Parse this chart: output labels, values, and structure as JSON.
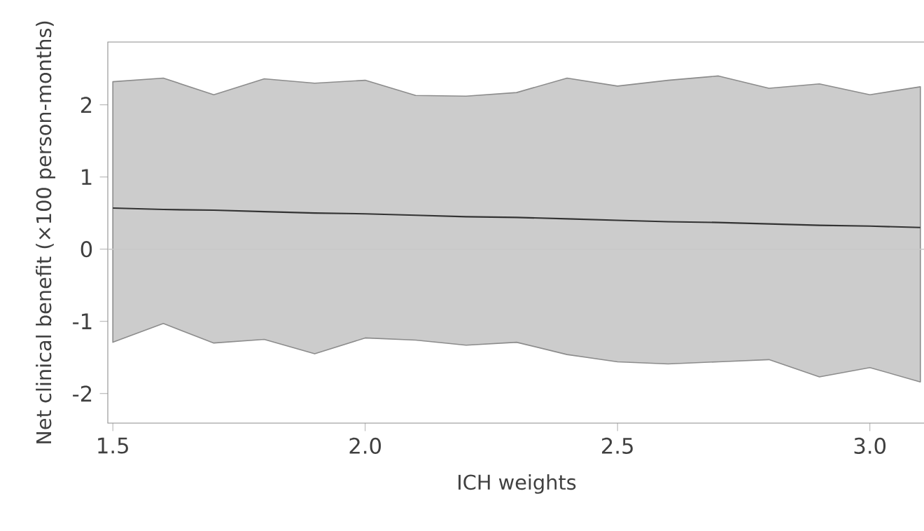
{
  "chart_data": {
    "type": "line",
    "xlabel": "ICH weights",
    "ylabel": "Net clinical benefit (×100 person-months)",
    "x": [
      1.5,
      1.6,
      1.7,
      1.8,
      1.9,
      2.0,
      2.1,
      2.2,
      2.3,
      2.4,
      2.5,
      2.6,
      2.7,
      2.8,
      2.9,
      3.0,
      3.1
    ],
    "series": [
      {
        "color": "#333333",
        "values": [
          0.57,
          0.55,
          0.54,
          0.52,
          0.5,
          0.49,
          0.47,
          0.45,
          0.44,
          0.42,
          0.4,
          0.38,
          0.37,
          0.35,
          0.33,
          0.32,
          0.3
        ],
        "lower": [
          -1.29,
          -1.03,
          -1.3,
          -1.25,
          -1.45,
          -1.23,
          -1.26,
          -1.33,
          -1.29,
          -1.46,
          -1.56,
          -1.59,
          -1.56,
          -1.53,
          -1.77,
          -1.64,
          -1.84
        ],
        "upper": [
          2.32,
          2.37,
          2.14,
          2.36,
          2.3,
          2.34,
          2.13,
          2.12,
          2.17,
          2.37,
          2.26,
          2.34,
          2.4,
          2.23,
          2.29,
          2.14,
          2.25
        ]
      }
    ],
    "xlim": [
      1.49,
      3.11
    ],
    "ylim": [
      -2.41,
      2.87
    ],
    "xticks": [
      1.5,
      {
        "value": 2.0,
        "label": "2.0"
      },
      2.5,
      {
        "value": 3.0,
        "label": "3.0"
      }
    ],
    "yticks": [
      -2,
      -1,
      0,
      1,
      2
    ],
    "ref_lines": [
      {
        "axis": "y",
        "value": 0,
        "color": "#c8c8c8"
      }
    ],
    "grid": false,
    "marker": "none",
    "line_style": "solid"
  }
}
